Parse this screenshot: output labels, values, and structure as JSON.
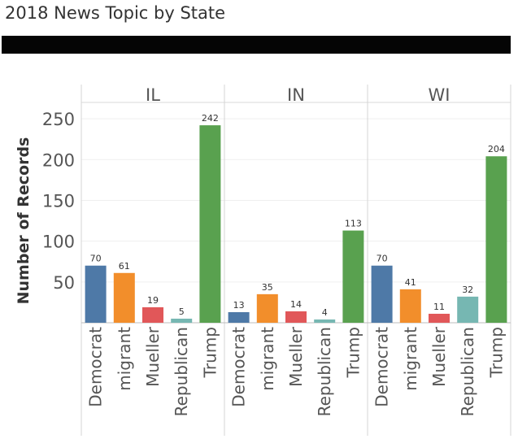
{
  "title": "2018 News Topic by State",
  "colors": {
    "Democrat": "#4e79a7",
    "migrant": "#f28e2b",
    "Mueller": "#e15759",
    "Republican": "#76b7b2",
    "Trump": "#59a14f",
    "banner": "#050505"
  },
  "chart_data": {
    "type": "bar",
    "ylabel": "Number of Records",
    "ylim": [
      0,
      270
    ],
    "yticks": [
      50,
      100,
      150,
      200,
      250
    ],
    "categories": [
      "Democrat",
      "migrant",
      "Mueller",
      "Republican",
      "Trump"
    ],
    "panels": [
      {
        "name": "IL",
        "values": [
          70,
          61,
          19,
          5,
          242
        ]
      },
      {
        "name": "IN",
        "values": [
          13,
          35,
          14,
          4,
          113
        ]
      },
      {
        "name": "WI",
        "values": [
          70,
          41,
          11,
          32,
          204
        ]
      }
    ]
  }
}
